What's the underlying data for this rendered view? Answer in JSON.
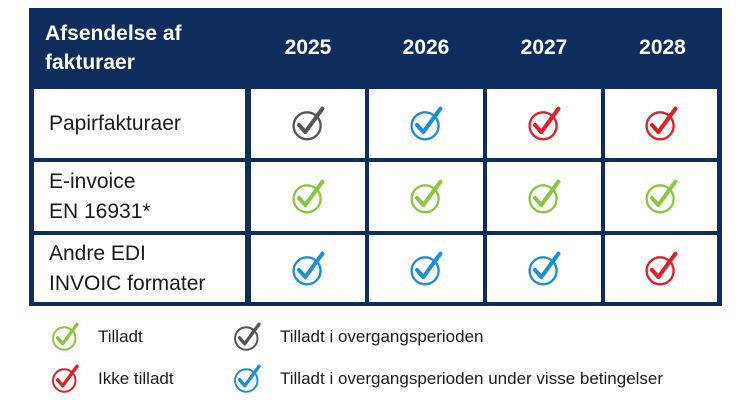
{
  "header": {
    "title": "Afsendelse af fakturaer",
    "years": [
      "2025",
      "2026",
      "2027",
      "2028"
    ]
  },
  "rows": [
    {
      "label": "Papirfakturaer",
      "statuses": [
        "grey",
        "blue",
        "red",
        "red"
      ]
    },
    {
      "label": "E-invoice EN 16931*",
      "statuses": [
        "green",
        "green",
        "green",
        "green"
      ]
    },
    {
      "label": "Andre EDI INVOIC formater",
      "statuses": [
        "blue",
        "blue",
        "blue",
        "red"
      ]
    }
  ],
  "legend": [
    {
      "status": "green",
      "label": "Tilladt"
    },
    {
      "status": "grey",
      "label": "Tilladt i overgangsperioden"
    },
    {
      "status": "red",
      "label": "Ikke tilladt"
    },
    {
      "status": "blue",
      "label": "Tilladt i overgangsperioden under visse betingelser"
    }
  ],
  "colors": {
    "header_bg": "#0f2d5c",
    "green": "#8cc63f",
    "grey": "#555555",
    "red": "#e31e24",
    "blue": "#1b8fd1"
  }
}
